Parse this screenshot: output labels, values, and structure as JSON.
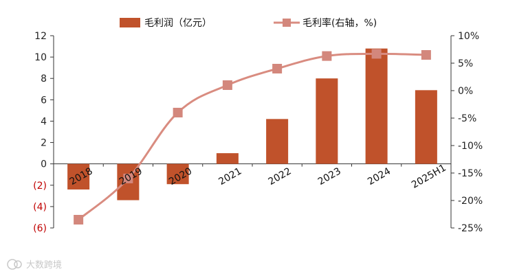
{
  "chart_data": {
    "type": "bar",
    "categories": [
      "2018",
      "2019",
      "2020",
      "2021",
      "2022",
      "2023",
      "2024",
      "2025H1"
    ],
    "series": [
      {
        "name": "毛利润（亿元）",
        "type": "bar",
        "axis": "left",
        "values": [
          -2.4,
          -3.4,
          -1.9,
          1.0,
          4.2,
          8.0,
          10.8,
          6.9
        ]
      },
      {
        "name": "毛利率(右轴，%)",
        "type": "line",
        "axis": "right",
        "values": [
          -23.5,
          -16.0,
          -4.0,
          1.0,
          4.0,
          6.3,
          6.7,
          6.5
        ]
      }
    ],
    "left_axis": {
      "ylim": [
        -6,
        12
      ],
      "ticks": [
        12,
        10,
        8,
        6,
        4,
        2,
        0,
        -2,
        -4,
        -6
      ],
      "tick_labels": [
        "12",
        "10",
        "8",
        "6",
        "4",
        "2",
        "0",
        "(2)",
        "(4)",
        "(6)"
      ]
    },
    "right_axis": {
      "ylim": [
        -25,
        10
      ],
      "ticks": [
        10,
        5,
        0,
        -5,
        -10,
        -15,
        -20,
        -25
      ],
      "tick_labels": [
        "10%",
        "5%",
        "0%",
        "-5%",
        "-10%",
        "-15%",
        "-20%",
        "-25%"
      ]
    },
    "grid": false,
    "legend_position": "top",
    "colors": {
      "bar": "#c0522b",
      "line": "#d98c80",
      "marker": "#d3877c",
      "axis": "#333333",
      "negative_tick": "#c00000"
    }
  },
  "watermark": {
    "icon": "logo-icon",
    "text": "大数跨境"
  }
}
